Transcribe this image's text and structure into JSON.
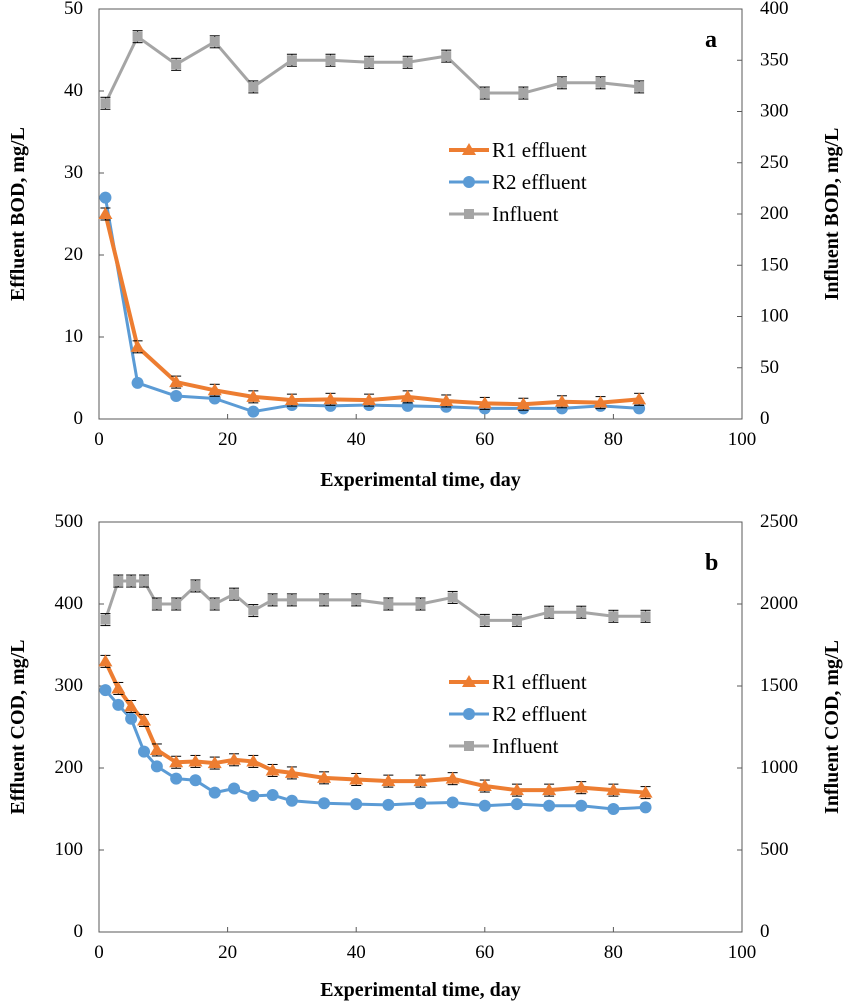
{
  "chart_data": [
    {
      "type": "line",
      "panel_label": "a",
      "xlabel": "Experimental time, day",
      "ylabel": "Effluent BOD, mg/L",
      "y2label": "Influent BOD, mg/L",
      "xlim": [
        0,
        100
      ],
      "ylim": [
        0,
        50
      ],
      "y2lim": [
        0,
        400
      ],
      "xticks": [
        0,
        20,
        40,
        60,
        80,
        100
      ],
      "yticks": [
        0,
        10,
        20,
        30,
        40,
        50
      ],
      "y2ticks": [
        0,
        50,
        100,
        150,
        200,
        250,
        300,
        350,
        400
      ],
      "legend": "center-right",
      "grid": false,
      "series": [
        {
          "name": "R1 effluent",
          "axis": "left",
          "color": "#ED7D31",
          "marker": "triangle",
          "x": [
            1,
            6,
            12,
            18,
            24,
            30,
            36,
            42,
            48,
            54,
            60,
            66,
            72,
            78,
            84
          ],
          "y": [
            25,
            8.8,
            4.5,
            3.5,
            2.7,
            2.3,
            2.4,
            2.3,
            2.7,
            2.2,
            1.9,
            1.8,
            2.1,
            2.0,
            2.4
          ]
        },
        {
          "name": "R2 effluent",
          "axis": "left",
          "color": "#5B9BD5",
          "marker": "circle",
          "x": [
            1,
            6,
            12,
            18,
            24,
            30,
            36,
            42,
            48,
            54,
            60,
            66,
            72,
            78,
            84
          ],
          "y": [
            27,
            4.4,
            2.8,
            2.5,
            0.9,
            1.7,
            1.6,
            1.7,
            1.6,
            1.5,
            1.3,
            1.3,
            1.3,
            1.6,
            1.3
          ]
        },
        {
          "name": "Influent",
          "axis": "right",
          "color": "#A5A5A5",
          "marker": "square",
          "x": [
            1,
            6,
            12,
            18,
            24,
            30,
            36,
            42,
            48,
            54,
            60,
            66,
            72,
            78,
            84
          ],
          "y": [
            308,
            373,
            346,
            368,
            324,
            350,
            350,
            348,
            348,
            354,
            318,
            318,
            328,
            328,
            324
          ]
        }
      ]
    },
    {
      "type": "line",
      "panel_label": "b",
      "xlabel": "Experimental time, day",
      "ylabel": "Effluent COD, mg/L",
      "y2label": "Influent COD, mg/L",
      "xlim": [
        0,
        100
      ],
      "ylim": [
        0,
        500
      ],
      "y2lim": [
        0,
        2500
      ],
      "xticks": [
        0,
        20,
        40,
        60,
        80,
        100
      ],
      "yticks": [
        0,
        100,
        200,
        300,
        400,
        500
      ],
      "y2ticks": [
        0,
        500,
        1000,
        1500,
        2000,
        2500
      ],
      "legend": "center-right",
      "grid": false,
      "series": [
        {
          "name": "R1 effluent",
          "axis": "left",
          "color": "#ED7D31",
          "marker": "triangle",
          "x": [
            1,
            3,
            5,
            7,
            9,
            12,
            15,
            18,
            21,
            24,
            27,
            30,
            35,
            40,
            45,
            50,
            55,
            60,
            65,
            70,
            75,
            80,
            85
          ],
          "y": [
            330,
            297,
            275,
            258,
            222,
            207,
            208,
            206,
            210,
            208,
            197,
            194,
            188,
            186,
            184,
            184,
            187,
            178,
            173,
            173,
            176,
            173,
            170
          ]
        },
        {
          "name": "R2 effluent",
          "axis": "left",
          "color": "#5B9BD5",
          "marker": "circle",
          "x": [
            1,
            3,
            5,
            7,
            9,
            12,
            15,
            18,
            21,
            24,
            27,
            30,
            35,
            40,
            45,
            50,
            55,
            60,
            65,
            70,
            75,
            80,
            85
          ],
          "y": [
            295,
            277,
            260,
            220,
            202,
            187,
            185,
            170,
            175,
            166,
            167,
            160,
            157,
            156,
            155,
            157,
            158,
            154,
            156,
            154,
            154,
            150,
            152
          ]
        },
        {
          "name": "Influent",
          "axis": "right",
          "color": "#A5A5A5",
          "marker": "square",
          "x": [
            1,
            3,
            5,
            7,
            9,
            12,
            15,
            18,
            21,
            24,
            27,
            30,
            35,
            40,
            45,
            50,
            55,
            60,
            65,
            70,
            75,
            80,
            85
          ],
          "y": [
            1905,
            2140,
            2140,
            2140,
            2000,
            2000,
            2110,
            2000,
            2060,
            1960,
            2025,
            2025,
            2025,
            2025,
            2000,
            2000,
            2040,
            1900,
            1900,
            1950,
            1950,
            1925,
            1925
          ]
        }
      ]
    }
  ]
}
